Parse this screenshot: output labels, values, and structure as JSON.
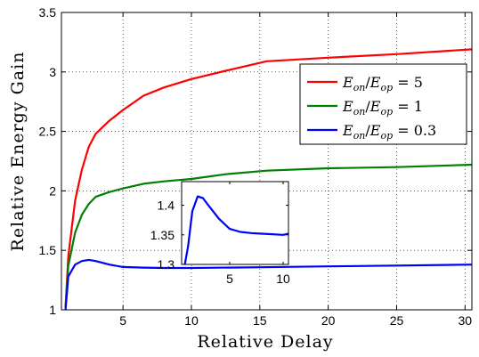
{
  "chart_data": [
    {
      "type": "line",
      "xlabel": "Relative Delay",
      "ylabel": "Relative Energy Gain",
      "xlim": [
        0.5,
        30.5
      ],
      "ylim": [
        1,
        3.5
      ],
      "xticks": [
        5,
        10,
        15,
        20,
        25,
        30
      ],
      "yticks": [
        1,
        1.5,
        2,
        2.5,
        3,
        3.5
      ],
      "xtick_labels": [
        "5",
        "10",
        "15",
        "20",
        "25",
        "30"
      ],
      "ytick_labels": [
        "1",
        "1.5",
        "2",
        "2.5",
        "3",
        "3.5"
      ],
      "grid": true,
      "legend_position": "right",
      "series": [
        {
          "name": "E_on/E_op = 5",
          "color": "#ff0000",
          "x": [
            0.8,
            1.0,
            1.5,
            2.0,
            2.5,
            3.0,
            4.0,
            5.0,
            6.5,
            8.0,
            10.0,
            12.5,
            15.5,
            20.0,
            25.0,
            30.5
          ],
          "y": [
            1.02,
            1.45,
            1.92,
            2.18,
            2.37,
            2.48,
            2.59,
            2.68,
            2.8,
            2.87,
            2.94,
            3.01,
            3.09,
            3.12,
            3.15,
            3.19
          ]
        },
        {
          "name": "E_on/E_op = 1",
          "color": "#008000",
          "x": [
            0.8,
            1.0,
            1.5,
            2.0,
            2.5,
            3.0,
            4.0,
            5.0,
            6.5,
            8.0,
            10.0,
            12.5,
            15.5,
            20.0,
            25.0,
            30.5
          ],
          "y": [
            1.02,
            1.37,
            1.65,
            1.8,
            1.89,
            1.95,
            1.99,
            2.02,
            2.06,
            2.08,
            2.1,
            2.14,
            2.17,
            2.19,
            2.2,
            2.22
          ]
        },
        {
          "name": "E_on/E_op = 0.3",
          "color": "#0000ff",
          "x": [
            0.8,
            1.0,
            1.5,
            2.0,
            2.5,
            3.0,
            4.0,
            5.0,
            6.5,
            8.0,
            10.0,
            15.0,
            20.0,
            25.0,
            30.5
          ],
          "y": [
            1.0,
            1.28,
            1.38,
            1.41,
            1.42,
            1.41,
            1.38,
            1.36,
            1.355,
            1.352,
            1.352,
            1.358,
            1.365,
            1.372,
            1.38
          ]
        }
      ]
    },
    {
      "type": "line",
      "inset": true,
      "xlim": [
        0.5,
        10.5
      ],
      "ylim": [
        1.3,
        1.44
      ],
      "xticks": [
        5,
        10
      ],
      "yticks": [
        1.3,
        1.35,
        1.4
      ],
      "xtick_labels": [
        "5",
        "10"
      ],
      "ytick_labels": [
        "1.3",
        "1.35",
        "1.4"
      ],
      "series": [
        {
          "color": "#0000ff",
          "x": [
            0.8,
            1.1,
            1.5,
            2.0,
            2.5,
            3.0,
            4.0,
            5.0,
            6.0,
            7.0,
            8.0,
            9.0,
            10.0,
            10.5
          ],
          "y": [
            1.3,
            1.33,
            1.39,
            1.415,
            1.412,
            1.4,
            1.377,
            1.36,
            1.355,
            1.353,
            1.352,
            1.351,
            1.35,
            1.352
          ]
        }
      ]
    }
  ]
}
